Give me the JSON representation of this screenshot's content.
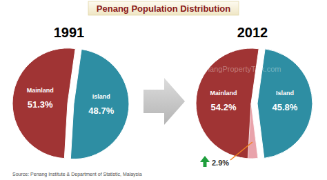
{
  "title": "Penang Population Distribution",
  "watermark": "PenangPropertyTalk.com",
  "source": "Source: Penang Institute & Department of Statistic, Malaysia",
  "chart_data": [
    {
      "type": "pie",
      "title": "1991",
      "categories": [
        "Mainland",
        "Island"
      ],
      "values": [
        51.3,
        48.7
      ],
      "value_labels": [
        "51.3%",
        "48.7%"
      ],
      "colors": [
        "#a03434",
        "#2e8ea3"
      ],
      "data_labels": true
    },
    {
      "type": "pie",
      "title": "2012",
      "categories": [
        "Mainland",
        "Island"
      ],
      "values": [
        54.2,
        45.8
      ],
      "value_labels": [
        "54.2%",
        "45.8%"
      ],
      "colors": [
        "#a03434",
        "#2e8ea3"
      ],
      "data_labels": true,
      "annotation": {
        "value": 2.9,
        "label": "2.9%"
      }
    }
  ]
}
